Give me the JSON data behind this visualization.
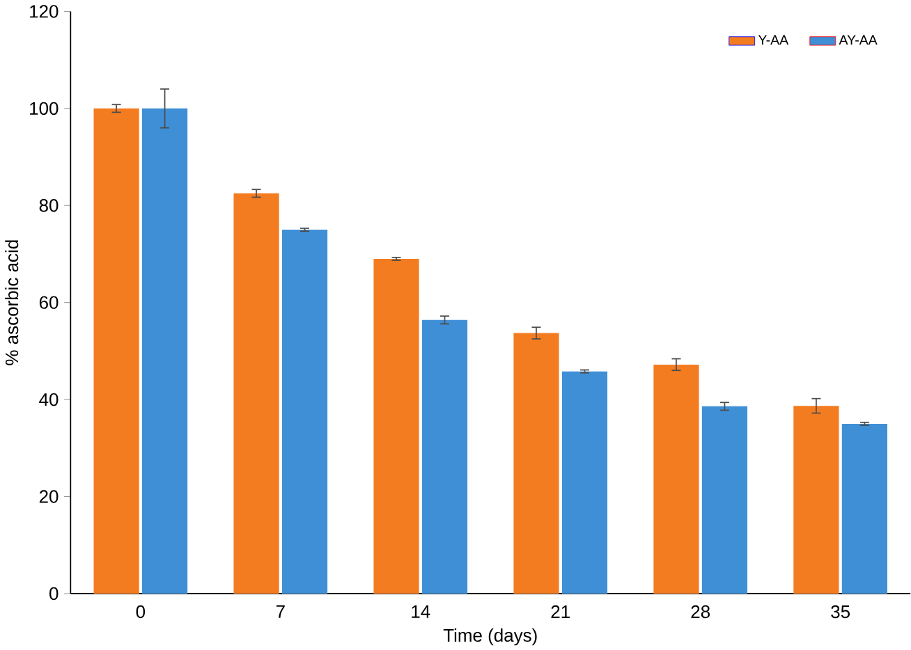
{
  "chart_data": {
    "type": "bar",
    "xlabel": "Time (days)",
    "ylabel": "% ascorbic acid",
    "categories": [
      "0",
      "7",
      "14",
      "21",
      "28",
      "35"
    ],
    "series": [
      {
        "name": "Y-AA",
        "color": "#f47c20",
        "values": [
          100,
          82.5,
          69,
          53.7,
          47.2,
          38.7
        ],
        "errors": [
          0.8,
          0.8,
          0.3,
          1.2,
          1.2,
          1.5
        ]
      },
      {
        "name": "AY-AA",
        "color": "#3f8fd6",
        "values": [
          100,
          75,
          56.4,
          45.8,
          38.6,
          35
        ],
        "errors": [
          4,
          0.3,
          0.8,
          0.3,
          0.8,
          0.3
        ]
      }
    ],
    "ylim": [
      0,
      120
    ],
    "yticks": [
      0,
      20,
      40,
      60,
      80,
      100,
      120
    ],
    "legend": "top right",
    "grid": false
  }
}
